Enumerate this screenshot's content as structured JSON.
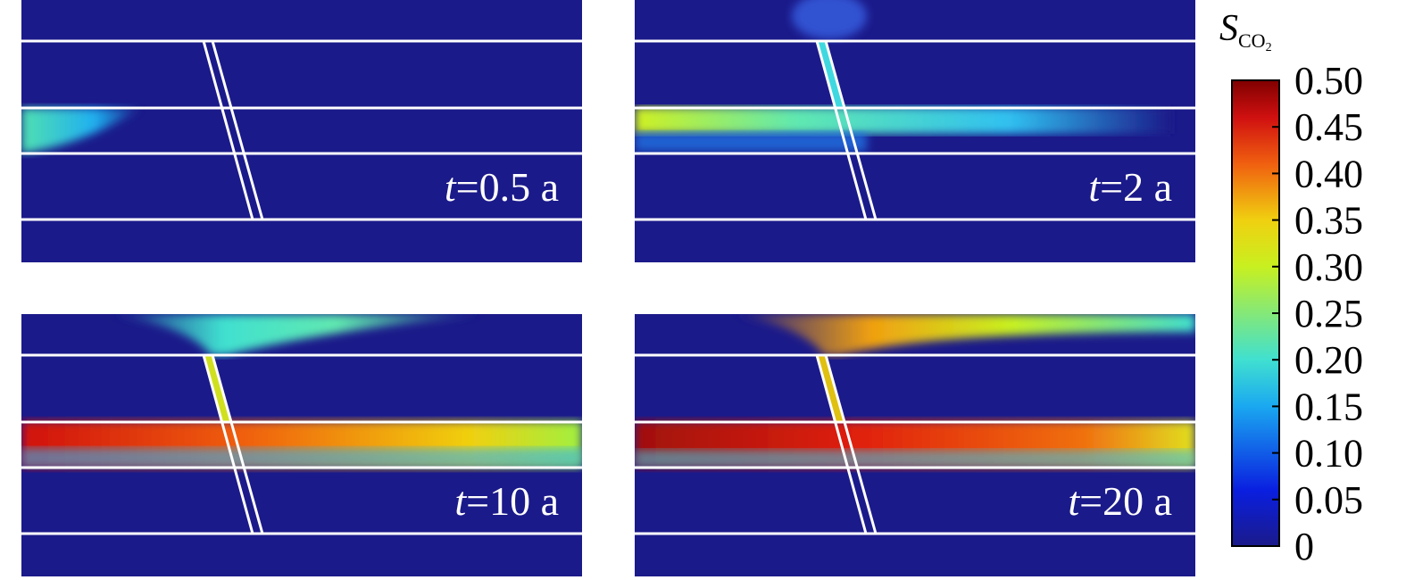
{
  "panels": [
    {
      "label_var": "t",
      "label_rest": "=0.5 a"
    },
    {
      "label_var": "t",
      "label_rest": "=2 a"
    },
    {
      "label_var": "t",
      "label_rest": "=10 a"
    },
    {
      "label_var": "t",
      "label_rest": "=20 a"
    }
  ],
  "colorbar": {
    "label": "S",
    "label_sub": "CO",
    "label_sub2": "2",
    "lim": [
      0,
      0.5
    ],
    "ticks": [
      0,
      {
        "value": 0.05,
        "label": "0.05"
      },
      {
        "value": 0.1,
        "label": "0.10"
      },
      {
        "value": 0.15,
        "label": "0.15"
      },
      {
        "value": 0.2,
        "label": "0.20"
      },
      {
        "value": 0.25,
        "label": "0.25"
      },
      {
        "value": 0.3,
        "label": "0.30"
      },
      {
        "value": 0.35,
        "label": "0.35"
      },
      {
        "value": 0.4,
        "label": "0.40"
      },
      {
        "value": 0.45,
        "label": "0.45"
      },
      {
        "value": 0.5,
        "label": "0.50"
      }
    ]
  }
}
